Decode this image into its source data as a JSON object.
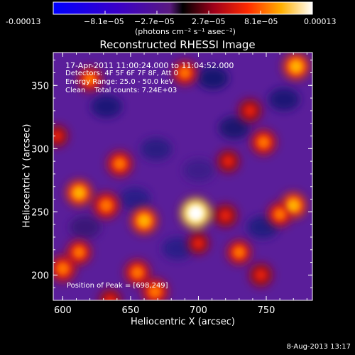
{
  "chart_data": {
    "type": "heatmap",
    "title": "Reconstructed RHESSI Image",
    "xlabel": "Heliocentric X (arcsec)",
    "ylabel": "Heliocentric Y (arcsec)",
    "xlim": [
      593,
      784
    ],
    "ylim": [
      180,
      376
    ],
    "xticks": [
      600,
      650,
      700,
      750
    ],
    "yticks": [
      200,
      250,
      300,
      350
    ],
    "colorbar": {
      "label": "(photons cm⁻² s⁻¹ asec⁻²)",
      "range": [
        -0.00013,
        0.00013
      ],
      "ticks": [
        "-0.00013",
        "−8.1e−05",
        "−2.7e−05",
        "2.7e−05",
        "8.1e−05",
        "0.00013"
      ]
    },
    "annotations": {
      "time": "17-Apr-2011 11:00:24.000 to 11:04:52.000",
      "detectors": "Detectors: 4F 5F 6F 7F 8F, Att 0",
      "energy": "Energy Range: 25.0 - 50.0 keV",
      "method": "Clean    Total counts: 7.24E+03",
      "peak": "Position of Peak = [698,249]"
    },
    "peak": {
      "x": 698,
      "y": 249
    },
    "sources": [
      {
        "x": 698,
        "y": 249,
        "intensity": 1.0
      },
      {
        "x": 660,
        "y": 243,
        "intensity": 0.75
      },
      {
        "x": 612,
        "y": 265,
        "intensity": 0.72
      },
      {
        "x": 632,
        "y": 255,
        "intensity": 0.7
      },
      {
        "x": 642,
        "y": 288,
        "intensity": 0.65
      },
      {
        "x": 620,
        "y": 355,
        "intensity": 0.6
      },
      {
        "x": 690,
        "y": 360,
        "intensity": 0.6
      },
      {
        "x": 772,
        "y": 365,
        "intensity": 0.75
      },
      {
        "x": 748,
        "y": 305,
        "intensity": 0.65
      },
      {
        "x": 738,
        "y": 330,
        "intensity": 0.55
      },
      {
        "x": 722,
        "y": 290,
        "intensity": 0.5
      },
      {
        "x": 770,
        "y": 255,
        "intensity": 0.72
      },
      {
        "x": 760,
        "y": 248,
        "intensity": 0.6
      },
      {
        "x": 720,
        "y": 247,
        "intensity": 0.55
      },
      {
        "x": 730,
        "y": 218,
        "intensity": 0.6
      },
      {
        "x": 746,
        "y": 200,
        "intensity": 0.55
      },
      {
        "x": 600,
        "y": 205,
        "intensity": 0.7
      },
      {
        "x": 612,
        "y": 218,
        "intensity": 0.6
      },
      {
        "x": 655,
        "y": 202,
        "intensity": 0.65
      },
      {
        "x": 668,
        "y": 187,
        "intensity": 0.7
      },
      {
        "x": 635,
        "y": 180,
        "intensity": 0.5
      },
      {
        "x": 700,
        "y": 225,
        "intensity": 0.45
      },
      {
        "x": 596,
        "y": 310,
        "intensity": 0.45
      }
    ],
    "grid": false
  },
  "footer": {
    "date": "8-Aug-2013 13:17"
  }
}
